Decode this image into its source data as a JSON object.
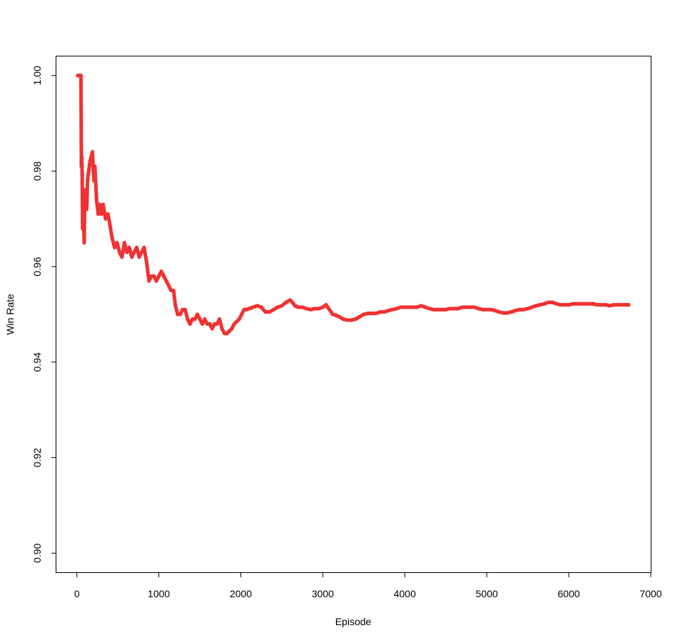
{
  "chart_data": {
    "type": "scatter",
    "title": "",
    "xlabel": "Episode",
    "ylabel": "Win Rate",
    "xlim": [
      -250,
      7000
    ],
    "ylim": [
      0.896,
      1.004
    ],
    "grid": false,
    "x_ticks": [
      0,
      1000,
      2000,
      3000,
      4000,
      5000,
      6000,
      7000
    ],
    "x_tick_labels": [
      "0",
      "1000",
      "2000",
      "3000",
      "4000",
      "5000",
      "6000",
      "7000"
    ],
    "y_ticks": [
      0.9,
      0.92,
      0.94,
      0.96,
      0.98,
      1.0
    ],
    "y_tick_labels": [
      "0.90",
      "0.92",
      "0.94",
      "0.96",
      "0.98",
      "1.00"
    ],
    "series": [
      {
        "color": "#f03232",
        "points": [
          [
            10,
            1.0
          ],
          [
            30,
            1.0
          ],
          [
            50,
            1.0
          ],
          [
            55,
            0.981
          ],
          [
            60,
            0.983
          ],
          [
            65,
            0.979
          ],
          [
            70,
            0.968
          ],
          [
            80,
            0.97
          ],
          [
            90,
            0.965
          ],
          [
            95,
            0.976
          ],
          [
            100,
            0.972
          ],
          [
            110,
            0.975
          ],
          [
            120,
            0.972
          ],
          [
            130,
            0.978
          ],
          [
            145,
            0.98
          ],
          [
            160,
            0.982
          ],
          [
            175,
            0.983
          ],
          [
            190,
            0.984
          ],
          [
            200,
            0.98
          ],
          [
            210,
            0.978
          ],
          [
            220,
            0.981
          ],
          [
            240,
            0.974
          ],
          [
            260,
            0.971
          ],
          [
            280,
            0.973
          ],
          [
            300,
            0.971
          ],
          [
            320,
            0.973
          ],
          [
            350,
            0.97
          ],
          [
            380,
            0.971
          ],
          [
            410,
            0.968
          ],
          [
            430,
            0.966
          ],
          [
            460,
            0.964
          ],
          [
            490,
            0.965
          ],
          [
            520,
            0.963
          ],
          [
            550,
            0.962
          ],
          [
            580,
            0.965
          ],
          [
            610,
            0.963
          ],
          [
            640,
            0.964
          ],
          [
            670,
            0.962
          ],
          [
            700,
            0.963
          ],
          [
            730,
            0.964
          ],
          [
            760,
            0.962
          ],
          [
            790,
            0.963
          ],
          [
            820,
            0.964
          ],
          [
            850,
            0.961
          ],
          [
            880,
            0.957
          ],
          [
            910,
            0.958
          ],
          [
            940,
            0.958
          ],
          [
            970,
            0.957
          ],
          [
            1000,
            0.958
          ],
          [
            1030,
            0.959
          ],
          [
            1060,
            0.958
          ],
          [
            1090,
            0.957
          ],
          [
            1120,
            0.956
          ],
          [
            1150,
            0.955
          ],
          [
            1180,
            0.955
          ],
          [
            1200,
            0.952
          ],
          [
            1230,
            0.95
          ],
          [
            1260,
            0.95
          ],
          [
            1290,
            0.951
          ],
          [
            1320,
            0.951
          ],
          [
            1350,
            0.949
          ],
          [
            1380,
            0.948
          ],
          [
            1410,
            0.949
          ],
          [
            1440,
            0.949
          ],
          [
            1470,
            0.95
          ],
          [
            1500,
            0.949
          ],
          [
            1530,
            0.948
          ],
          [
            1560,
            0.949
          ],
          [
            1590,
            0.948
          ],
          [
            1620,
            0.948
          ],
          [
            1650,
            0.947
          ],
          [
            1680,
            0.948
          ],
          [
            1710,
            0.948
          ],
          [
            1740,
            0.949
          ],
          [
            1770,
            0.947
          ],
          [
            1800,
            0.946
          ],
          [
            1830,
            0.946
          ],
          [
            1860,
            0.9465
          ],
          [
            1890,
            0.947
          ],
          [
            1920,
            0.948
          ],
          [
            1950,
            0.9485
          ],
          [
            1980,
            0.949
          ],
          [
            2010,
            0.95
          ],
          [
            2040,
            0.951
          ],
          [
            2070,
            0.951
          ],
          [
            2100,
            0.9512
          ],
          [
            2150,
            0.9515
          ],
          [
            2200,
            0.9518
          ],
          [
            2250,
            0.9515
          ],
          [
            2300,
            0.9505
          ],
          [
            2350,
            0.9505
          ],
          [
            2400,
            0.951
          ],
          [
            2450,
            0.9515
          ],
          [
            2500,
            0.9518
          ],
          [
            2550,
            0.9525
          ],
          [
            2600,
            0.953
          ],
          [
            2630,
            0.9525
          ],
          [
            2660,
            0.9518
          ],
          [
            2700,
            0.9515
          ],
          [
            2750,
            0.9515
          ],
          [
            2800,
            0.9512
          ],
          [
            2850,
            0.951
          ],
          [
            2900,
            0.9512
          ],
          [
            2950,
            0.9512
          ],
          [
            3000,
            0.9515
          ],
          [
            3040,
            0.952
          ],
          [
            3080,
            0.951
          ],
          [
            3120,
            0.95
          ],
          [
            3160,
            0.9498
          ],
          [
            3200,
            0.9495
          ],
          [
            3250,
            0.949
          ],
          [
            3300,
            0.9488
          ],
          [
            3350,
            0.9488
          ],
          [
            3400,
            0.949
          ],
          [
            3450,
            0.9495
          ],
          [
            3500,
            0.95
          ],
          [
            3550,
            0.9502
          ],
          [
            3600,
            0.9502
          ],
          [
            3650,
            0.9502
          ],
          [
            3700,
            0.9505
          ],
          [
            3750,
            0.9505
          ],
          [
            3800,
            0.9508
          ],
          [
            3850,
            0.951
          ],
          [
            3900,
            0.9512
          ],
          [
            3950,
            0.9515
          ],
          [
            4000,
            0.9515
          ],
          [
            4050,
            0.9515
          ],
          [
            4100,
            0.9515
          ],
          [
            4150,
            0.9515
          ],
          [
            4200,
            0.9518
          ],
          [
            4250,
            0.9515
          ],
          [
            4300,
            0.9512
          ],
          [
            4350,
            0.951
          ],
          [
            4400,
            0.951
          ],
          [
            4450,
            0.951
          ],
          [
            4500,
            0.951
          ],
          [
            4550,
            0.9512
          ],
          [
            4600,
            0.9512
          ],
          [
            4650,
            0.9512
          ],
          [
            4700,
            0.9515
          ],
          [
            4750,
            0.9515
          ],
          [
            4800,
            0.9515
          ],
          [
            4850,
            0.9515
          ],
          [
            4900,
            0.9512
          ],
          [
            4950,
            0.951
          ],
          [
            5000,
            0.951
          ],
          [
            5050,
            0.951
          ],
          [
            5100,
            0.9508
          ],
          [
            5150,
            0.9505
          ],
          [
            5200,
            0.9503
          ],
          [
            5250,
            0.9503
          ],
          [
            5300,
            0.9505
          ],
          [
            5350,
            0.9508
          ],
          [
            5400,
            0.951
          ],
          [
            5450,
            0.951
          ],
          [
            5500,
            0.9512
          ],
          [
            5550,
            0.9515
          ],
          [
            5600,
            0.9518
          ],
          [
            5650,
            0.952
          ],
          [
            5700,
            0.9522
          ],
          [
            5750,
            0.9525
          ],
          [
            5800,
            0.9525
          ],
          [
            5850,
            0.9522
          ],
          [
            5900,
            0.952
          ],
          [
            5950,
            0.952
          ],
          [
            6000,
            0.952
          ],
          [
            6050,
            0.9522
          ],
          [
            6100,
            0.9522
          ],
          [
            6150,
            0.9522
          ],
          [
            6200,
            0.9522
          ],
          [
            6250,
            0.9522
          ],
          [
            6300,
            0.9522
          ],
          [
            6350,
            0.952
          ],
          [
            6400,
            0.952
          ],
          [
            6450,
            0.952
          ],
          [
            6500,
            0.9518
          ],
          [
            6550,
            0.952
          ],
          [
            6600,
            0.952
          ],
          [
            6650,
            0.952
          ],
          [
            6700,
            0.952
          ],
          [
            6730,
            0.952
          ]
        ]
      }
    ]
  }
}
